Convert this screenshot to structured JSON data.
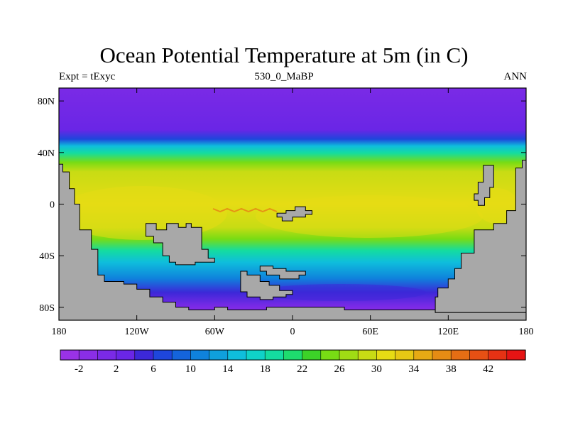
{
  "title": "Ocean Potential Temperature at 5m (in C)",
  "subtitle_left": "Expt = tExyc",
  "subtitle_center": "530_0_MaBP",
  "subtitle_right": "ANN",
  "map": {
    "lon_ticks": [
      {
        "lon": -180,
        "label": "180"
      },
      {
        "lon": -120,
        "label": "120W"
      },
      {
        "lon": -60,
        "label": "60W"
      },
      {
        "lon": 0,
        "label": "0"
      },
      {
        "lon": 60,
        "label": "60E"
      },
      {
        "lon": 120,
        "label": "120E"
      },
      {
        "lon": 180,
        "label": "180"
      }
    ],
    "lat_ticks": [
      {
        "lat": 80,
        "label": "80N"
      },
      {
        "lat": 40,
        "label": "40N"
      },
      {
        "lat": 0,
        "label": "0"
      },
      {
        "lat": -40,
        "label": "40S"
      },
      {
        "lat": -80,
        "label": "80S"
      }
    ],
    "lon_range": [
      -180,
      180
    ],
    "lat_range": [
      -90,
      90
    ],
    "land_color": "#a8a8a8",
    "continents": [
      {
        "name": "western-continent",
        "coords": [
          [
            -180,
            31
          ],
          [
            -177,
            31
          ],
          [
            -177,
            25
          ],
          [
            -172,
            25
          ],
          [
            -172,
            12
          ],
          [
            -168,
            12
          ],
          [
            -168,
            0
          ],
          [
            -164,
            0
          ],
          [
            -164,
            -20
          ],
          [
            -155,
            -20
          ],
          [
            -155,
            -35
          ],
          [
            -150,
            -35
          ],
          [
            -150,
            -55
          ],
          [
            -145,
            -55
          ],
          [
            -145,
            -60
          ],
          [
            -130,
            -60
          ],
          [
            -130,
            -62
          ],
          [
            -120,
            -62
          ],
          [
            -120,
            -66
          ],
          [
            -110,
            -66
          ],
          [
            -110,
            -72
          ],
          [
            -100,
            -72
          ],
          [
            -100,
            -76
          ],
          [
            -90,
            -76
          ],
          [
            -90,
            -80
          ],
          [
            -80,
            -80
          ],
          [
            -80,
            -82
          ],
          [
            -60,
            -82
          ],
          [
            -60,
            -80
          ],
          [
            -50,
            -80
          ],
          [
            -50,
            -82
          ],
          [
            -20,
            -82
          ],
          [
            -20,
            -80
          ],
          [
            40,
            -80
          ],
          [
            40,
            -82
          ],
          [
            110,
            -82
          ],
          [
            110,
            -84
          ],
          [
            180,
            -84
          ],
          [
            180,
            -90
          ],
          [
            -180,
            -90
          ]
        ]
      },
      {
        "name": "eastern-continent",
        "coords": [
          [
            180,
            34
          ],
          [
            177,
            34
          ],
          [
            177,
            28
          ],
          [
            172,
            28
          ],
          [
            172,
            -5
          ],
          [
            165,
            -5
          ],
          [
            165,
            -15
          ],
          [
            155,
            -15
          ],
          [
            155,
            -20
          ],
          [
            140,
            -20
          ],
          [
            140,
            -38
          ],
          [
            130,
            -38
          ],
          [
            130,
            -50
          ],
          [
            125,
            -50
          ],
          [
            125,
            -58
          ],
          [
            120,
            -58
          ],
          [
            120,
            -65
          ],
          [
            112,
            -65
          ],
          [
            112,
            -72
          ],
          [
            110,
            -72
          ],
          [
            110,
            -84
          ],
          [
            180,
            -84
          ]
        ]
      },
      {
        "name": "eastern-peninsula",
        "coords": [
          [
            147,
            30
          ],
          [
            155,
            30
          ],
          [
            155,
            13
          ],
          [
            152,
            13
          ],
          [
            152,
            5
          ],
          [
            148,
            5
          ],
          [
            148,
            -1
          ],
          [
            143,
            -1
          ],
          [
            143,
            3
          ],
          [
            140,
            3
          ],
          [
            140,
            8
          ],
          [
            143,
            8
          ],
          [
            143,
            17
          ],
          [
            147,
            17
          ]
        ]
      },
      {
        "name": "island-south-pacific",
        "coords": [
          [
            -113,
            -15
          ],
          [
            -105,
            -15
          ],
          [
            -105,
            -20
          ],
          [
            -97,
            -20
          ],
          [
            -97,
            -15
          ],
          [
            -88,
            -15
          ],
          [
            -88,
            -18
          ],
          [
            -82,
            -18
          ],
          [
            -82,
            -15
          ],
          [
            -78,
            -15
          ],
          [
            -78,
            -18
          ],
          [
            -70,
            -18
          ],
          [
            -70,
            -35
          ],
          [
            -65,
            -35
          ],
          [
            -65,
            -42
          ],
          [
            -60,
            -42
          ],
          [
            -60,
            -45
          ],
          [
            -75,
            -45
          ],
          [
            -75,
            -47
          ],
          [
            -90,
            -47
          ],
          [
            -90,
            -45
          ],
          [
            -95,
            -45
          ],
          [
            -95,
            -40
          ],
          [
            -100,
            -40
          ],
          [
            -100,
            -30
          ],
          [
            -107,
            -30
          ],
          [
            -107,
            -25
          ],
          [
            -113,
            -25
          ]
        ]
      },
      {
        "name": "island-atlantic",
        "coords": [
          [
            -5,
            -5
          ],
          [
            2,
            -5
          ],
          [
            2,
            -2
          ],
          [
            10,
            -2
          ],
          [
            10,
            -5
          ],
          [
            15,
            -5
          ],
          [
            15,
            -8
          ],
          [
            10,
            -8
          ],
          [
            10,
            -10
          ],
          [
            0,
            -10
          ],
          [
            0,
            -13
          ],
          [
            -8,
            -13
          ],
          [
            -8,
            -10
          ],
          [
            -12,
            -10
          ],
          [
            -12,
            -7
          ],
          [
            -5,
            -7
          ]
        ]
      },
      {
        "name": "island-south-atlantic-a",
        "coords": [
          [
            -40,
            -52
          ],
          [
            -35,
            -52
          ],
          [
            -35,
            -55
          ],
          [
            -25,
            -55
          ],
          [
            -25,
            -60
          ],
          [
            -18,
            -60
          ],
          [
            -18,
            -63
          ],
          [
            -10,
            -63
          ],
          [
            -10,
            -67
          ],
          [
            0,
            -67
          ],
          [
            0,
            -70
          ],
          [
            -5,
            -70
          ],
          [
            -5,
            -72
          ],
          [
            -15,
            -72
          ],
          [
            -15,
            -74
          ],
          [
            -25,
            -74
          ],
          [
            -25,
            -72
          ],
          [
            -35,
            -72
          ],
          [
            -35,
            -68
          ],
          [
            -40,
            -68
          ]
        ]
      },
      {
        "name": "island-south-atlantic-b",
        "coords": [
          [
            -25,
            -48
          ],
          [
            -15,
            -48
          ],
          [
            -15,
            -50
          ],
          [
            -5,
            -50
          ],
          [
            -5,
            -52
          ],
          [
            10,
            -52
          ],
          [
            10,
            -55
          ],
          [
            5,
            -55
          ],
          [
            5,
            -58
          ],
          [
            -10,
            -58
          ],
          [
            -10,
            -55
          ],
          [
            -20,
            -55
          ],
          [
            -20,
            -52
          ],
          [
            -25,
            -52
          ]
        ]
      }
    ]
  },
  "colorbar": {
    "colors": [
      "#9a32e6",
      "#8a2ee6",
      "#7a2ae6",
      "#6a26e6",
      "#3c28d8",
      "#1e46dc",
      "#1464dc",
      "#0f82dc",
      "#0fa0dc",
      "#0fbedc",
      "#0fd2c8",
      "#14dca0",
      "#1edc6e",
      "#3cd228",
      "#78dc14",
      "#a0dc14",
      "#c8dc14",
      "#e6dc14",
      "#e6c814",
      "#e6aa14",
      "#e68c14",
      "#e66e14",
      "#e65014",
      "#e63214",
      "#e61414"
    ],
    "labels": [
      {
        "index": 1,
        "text": "-2"
      },
      {
        "index": 3,
        "text": "2"
      },
      {
        "index": 5,
        "text": "6"
      },
      {
        "index": 7,
        "text": "10"
      },
      {
        "index": 9,
        "text": "14"
      },
      {
        "index": 11,
        "text": "18"
      },
      {
        "index": 13,
        "text": "22"
      },
      {
        "index": 15,
        "text": "26"
      },
      {
        "index": 17,
        "text": "30"
      },
      {
        "index": 19,
        "text": "34"
      },
      {
        "index": 21,
        "text": "38"
      },
      {
        "index": 23,
        "text": "42"
      }
    ]
  }
}
